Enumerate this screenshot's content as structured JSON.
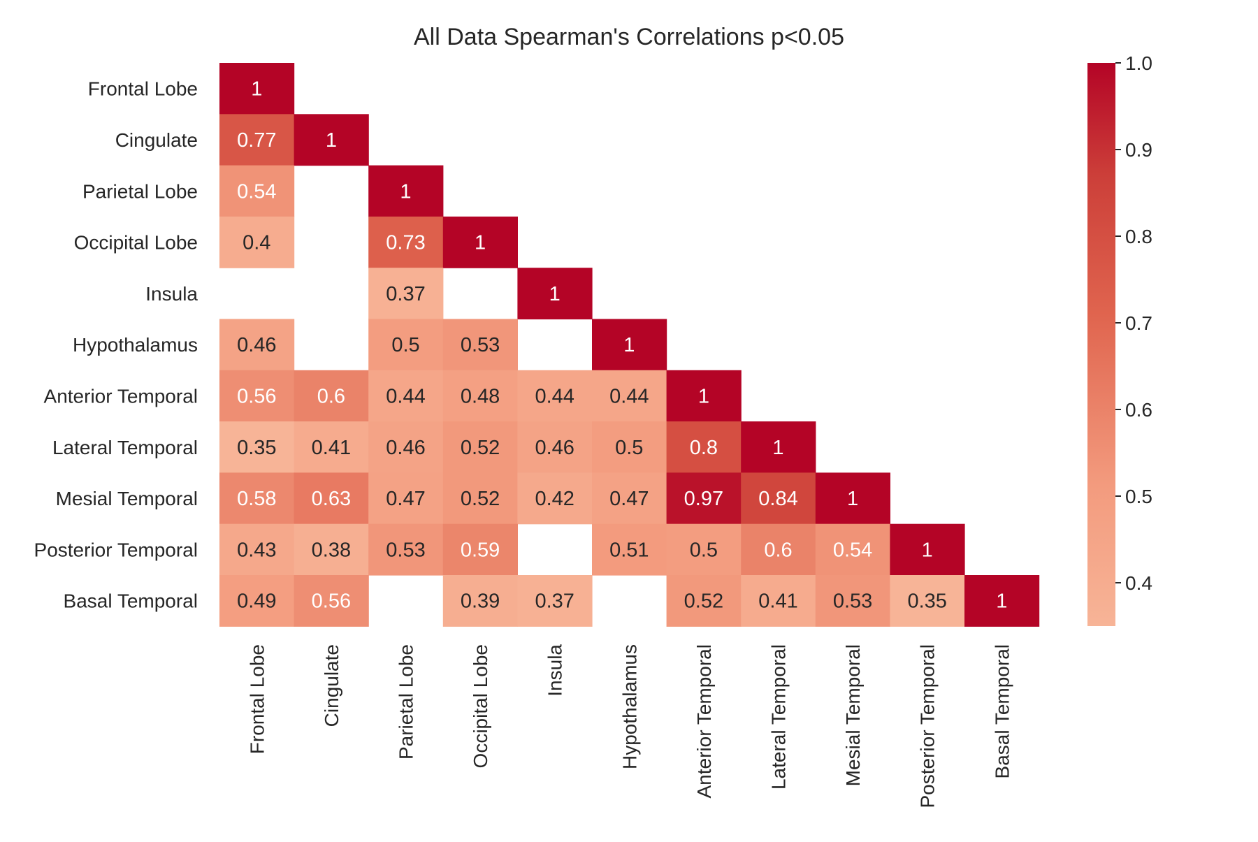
{
  "chart_data": {
    "type": "heatmap",
    "title": "All Data Spearman's Correlations p<0.05",
    "xlabel": "",
    "ylabel": "",
    "rows": [
      "Frontal Lobe",
      "Cingulate",
      "Parietal Lobe",
      "Occipital Lobe",
      "Insula",
      "Hypothalamus",
      "Anterior Temporal",
      "Lateral Temporal",
      "Mesial Temporal",
      "Posterior Temporal",
      "Basal Temporal"
    ],
    "columns": [
      "Frontal Lobe",
      "Cingulate",
      "Parietal Lobe",
      "Occipital Lobe",
      "Insula",
      "Hypothalamus",
      "Anterior Temporal",
      "Lateral Temporal",
      "Mesial Temporal",
      "Posterior Temporal",
      "Basal Temporal"
    ],
    "values": [
      [
        1,
        null,
        null,
        null,
        null,
        null,
        null,
        null,
        null,
        null,
        null
      ],
      [
        0.77,
        1,
        null,
        null,
        null,
        null,
        null,
        null,
        null,
        null,
        null
      ],
      [
        0.54,
        null,
        1,
        null,
        null,
        null,
        null,
        null,
        null,
        null,
        null
      ],
      [
        0.4,
        null,
        0.73,
        1,
        null,
        null,
        null,
        null,
        null,
        null,
        null
      ],
      [
        null,
        null,
        0.37,
        null,
        1,
        null,
        null,
        null,
        null,
        null,
        null
      ],
      [
        0.46,
        null,
        0.5,
        0.53,
        null,
        1,
        null,
        null,
        null,
        null,
        null
      ],
      [
        0.56,
        0.6,
        0.44,
        0.48,
        0.44,
        0.44,
        1,
        null,
        null,
        null,
        null
      ],
      [
        0.35,
        0.41,
        0.46,
        0.52,
        0.46,
        0.5,
        0.8,
        1,
        null,
        null,
        null
      ],
      [
        0.58,
        0.63,
        0.47,
        0.52,
        0.42,
        0.47,
        0.97,
        0.84,
        1,
        null,
        null
      ],
      [
        0.43,
        0.38,
        0.53,
        0.59,
        null,
        0.51,
        0.5,
        0.6,
        0.54,
        1,
        null
      ],
      [
        0.49,
        0.56,
        null,
        0.39,
        0.37,
        null,
        0.52,
        0.41,
        0.53,
        0.35,
        1
      ]
    ],
    "colorbar": {
      "ticks": [
        "0.4",
        "0.5",
        "0.6",
        "0.7",
        "0.8",
        "0.9",
        "1.0"
      ],
      "range": [
        0.35,
        1.0
      ]
    },
    "colormap": {
      "low": "#f7b497",
      "high": "#b40426"
    },
    "grid": false,
    "legend": "colorbar-right"
  }
}
